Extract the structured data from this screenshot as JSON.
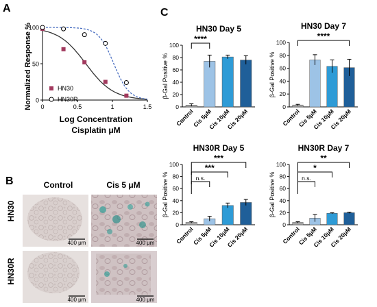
{
  "panel_labels": {
    "a": "A",
    "b": "B",
    "c": "C"
  },
  "panel_a": {
    "ylabel": "Normalized Response %",
    "xlabel_line1": "Log Concentration",
    "xlabel_line2": "Cisplatin μM",
    "x_ticks": [
      "0",
      "0.5",
      "1",
      "1.5"
    ],
    "y_ticks": [
      "0",
      "50",
      "100"
    ],
    "legend": [
      {
        "label": "HN30",
        "marker": "filled-square",
        "color": "#a23a5e"
      },
      {
        "label": "HN30R",
        "marker": "open-circle",
        "color": "#000000"
      }
    ]
  },
  "panel_b": {
    "col_headers": [
      "Control",
      "Cis 5 μM"
    ],
    "row_labels": [
      "HN30",
      "HN30R"
    ],
    "scale_bar_label": "400 μm"
  },
  "chart_data": [
    {
      "type": "scatter",
      "title": "",
      "xlabel": "Log Concentration Cisplatin μM",
      "ylabel": "Normalized Response %",
      "xlim": [
        0,
        1.5
      ],
      "ylim": [
        0,
        100
      ],
      "series": [
        {
          "name": "HN30",
          "marker": "square",
          "color": "#a23a5e",
          "x": [
            0,
            0.3,
            0.6,
            0.9,
            1.2
          ],
          "y": [
            98,
            70,
            52,
            25,
            6
          ],
          "fit_ic50": 0.62,
          "fit_slope": 2.2,
          "fit_style": "solid",
          "fit_color": "#333333"
        },
        {
          "name": "HN30R",
          "marker": "circle-open",
          "color": "#000000",
          "x": [
            0,
            0.3,
            0.6,
            0.9,
            1.2
          ],
          "y": [
            100,
            98,
            90,
            78,
            24
          ],
          "fit_ic50": 1.02,
          "fit_slope": 4.0,
          "fit_style": "dashed",
          "fit_color": "#4a6fc1"
        }
      ]
    },
    {
      "type": "bar",
      "title": "HN30 Day 5",
      "ylabel": "β-Gal Positive %",
      "categories": [
        "Control",
        "Cis 5μM",
        "Cis 10μM",
        "Cis 20μM"
      ],
      "values": [
        3,
        74,
        81,
        76
      ],
      "errors": [
        2,
        10,
        3,
        7
      ],
      "ylim": [
        0,
        100
      ],
      "yticks": [
        0,
        20,
        40,
        60,
        80,
        100
      ],
      "colors": [
        "#a6a6a6",
        "#9dc3e6",
        "#2e9bd6",
        "#1f5f99"
      ],
      "significance": [
        {
          "from": 0,
          "to": 1,
          "label": "****"
        }
      ]
    },
    {
      "type": "bar",
      "title": "HN30 Day 7",
      "ylabel": "β-Gal Positive %",
      "categories": [
        "Control",
        "Cis 5μM",
        "Cis 10μM",
        "Cis 20μM"
      ],
      "values": [
        3,
        73,
        63,
        61
      ],
      "errors": [
        1,
        8,
        10,
        13
      ],
      "ylim": [
        0,
        100
      ],
      "yticks": [
        0,
        20,
        40,
        60,
        80,
        100
      ],
      "colors": [
        "#a6a6a6",
        "#9dc3e6",
        "#2e9bd6",
        "#1f5f99"
      ],
      "significance": [
        {
          "from": 0,
          "to": 3,
          "label": "****"
        }
      ]
    },
    {
      "type": "bar",
      "title": "HN30R Day 5",
      "ylabel": "β-Gal Positive %",
      "categories": [
        "Control",
        "Cis 5μM",
        "Cis 10μM",
        "Cis 20μM"
      ],
      "values": [
        4,
        10,
        32,
        37
      ],
      "errors": [
        1,
        4,
        4,
        5
      ],
      "ylim": [
        0,
        100
      ],
      "yticks": [
        0,
        20,
        40,
        60,
        80,
        100
      ],
      "colors": [
        "#a6a6a6",
        "#9dc3e6",
        "#2e9bd6",
        "#1f5f99"
      ],
      "significance": [
        {
          "from": 0,
          "to": 1,
          "label": "n.s."
        },
        {
          "from": 0,
          "to": 2,
          "label": "***"
        },
        {
          "from": 0,
          "to": 3,
          "label": "***"
        }
      ]
    },
    {
      "type": "bar",
      "title": "HN30R Day 7",
      "ylabel": "β-Gal Positive %",
      "categories": [
        "Control",
        "Cis 5μM",
        "Cis 10μM",
        "Cis 20μM"
      ],
      "values": [
        4,
        11,
        19,
        20
      ],
      "errors": [
        1,
        6,
        1,
        1
      ],
      "ylim": [
        0,
        100
      ],
      "yticks": [
        0,
        20,
        40,
        60,
        80,
        100
      ],
      "colors": [
        "#a6a6a6",
        "#9dc3e6",
        "#2e9bd6",
        "#1f5f99"
      ],
      "significance": [
        {
          "from": 0,
          "to": 1,
          "label": "n.s."
        },
        {
          "from": 0,
          "to": 2,
          "label": "*"
        },
        {
          "from": 0,
          "to": 3,
          "label": "**"
        }
      ]
    }
  ]
}
